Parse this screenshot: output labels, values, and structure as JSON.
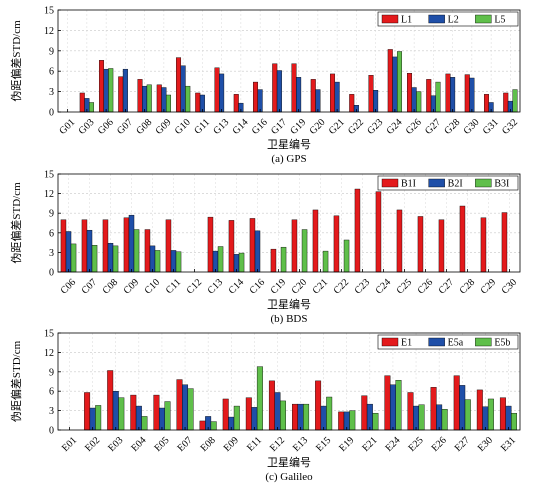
{
  "chart_data": [
    {
      "type": "bar",
      "caption": "(a) GPS",
      "xlabel": "卫星编号",
      "ylabel": "伪距偏差STD/cm",
      "ylim": [
        0,
        15
      ],
      "yticks": [
        0,
        3,
        6,
        9,
        12,
        15
      ],
      "grid": true,
      "legend_position": "top-right",
      "categories": [
        "G01",
        "G03",
        "G06",
        "G07",
        "G08",
        "G09",
        "G10",
        "G11",
        "G13",
        "G14",
        "G16",
        "G17",
        "G19",
        "G20",
        "G21",
        "G22",
        "G23",
        "G24",
        "G26",
        "G27",
        "G28",
        "G30",
        "G31",
        "G32"
      ],
      "series": [
        {
          "name": "L1",
          "color": "#e31a1c",
          "values": [
            0,
            2.8,
            7.6,
            5.2,
            4.8,
            4.0,
            8.0,
            2.8,
            6.5,
            2.6,
            4.4,
            7.1,
            7.1,
            4.8,
            5.6,
            2.6,
            5.4,
            9.2,
            5.7,
            4.8,
            5.6,
            5.5,
            2.6,
            2.8
          ]
        },
        {
          "name": "L2",
          "color": "#1f4fa8",
          "values": [
            0,
            2.0,
            6.3,
            6.3,
            3.8,
            3.6,
            6.8,
            2.5,
            5.6,
            1.3,
            3.3,
            6.1,
            5.1,
            3.3,
            4.4,
            1.0,
            3.2,
            8.1,
            3.6,
            2.4,
            5.1,
            5.0,
            1.4,
            1.6
          ]
        },
        {
          "name": "L5",
          "color": "#5fbf4a",
          "values": [
            0,
            1.4,
            6.4,
            0,
            4.0,
            2.5,
            3.8,
            0,
            0,
            0,
            0,
            0,
            0,
            0,
            0,
            0,
            0,
            8.9,
            3.0,
            4.4,
            0,
            0,
            0,
            3.3
          ]
        }
      ]
    },
    {
      "type": "bar",
      "caption": "(b) BDS",
      "xlabel": "卫星编号",
      "ylabel": "伪距偏差STD/cm",
      "ylim": [
        0,
        15
      ],
      "yticks": [
        0,
        3,
        6,
        9,
        12,
        15
      ],
      "grid": true,
      "legend_position": "top-right",
      "categories": [
        "C06",
        "C07",
        "C08",
        "C09",
        "C10",
        "C11",
        "C12",
        "C13",
        "C14",
        "C16",
        "C19",
        "C20",
        "C21",
        "C22",
        "C23",
        "C24",
        "C25",
        "C26",
        "C27",
        "C28",
        "C29",
        "C30"
      ],
      "series": [
        {
          "name": "B1I",
          "color": "#e31a1c",
          "values": [
            8.0,
            8.0,
            8.0,
            8.3,
            6.5,
            8.0,
            0,
            8.4,
            7.9,
            8.2,
            3.5,
            8.0,
            9.5,
            8.6,
            12.7,
            12.3,
            9.5,
            8.5,
            8.0,
            10.1,
            8.3,
            9.1
          ]
        },
        {
          "name": "B2I",
          "color": "#1f4fa8",
          "values": [
            6.2,
            6.4,
            4.4,
            8.7,
            4.0,
            3.3,
            0,
            3.2,
            2.7,
            6.3,
            0,
            0,
            0,
            0,
            0,
            0,
            0,
            0,
            0,
            0,
            0,
            0
          ]
        },
        {
          "name": "B3I",
          "color": "#5fbf4a",
          "values": [
            4.3,
            4.1,
            4.0,
            6.5,
            3.3,
            3.1,
            0,
            3.9,
            2.9,
            0,
            3.8,
            6.5,
            3.2,
            4.9,
            0,
            0,
            0,
            0,
            0,
            0,
            0,
            0
          ]
        }
      ]
    },
    {
      "type": "bar",
      "caption": "(c) Galileo",
      "xlabel": "卫星编号",
      "ylabel": "伪距偏差STD/cm",
      "ylim": [
        0,
        15
      ],
      "yticks": [
        0,
        3,
        6,
        9,
        12,
        15
      ],
      "grid": true,
      "legend_position": "top-right",
      "categories": [
        "E01",
        "E02",
        "E03",
        "E04",
        "E05",
        "E07",
        "E08",
        "E09",
        "E11",
        "E12",
        "E13",
        "E15",
        "E19",
        "E21",
        "E24",
        "E25",
        "E26",
        "E27",
        "E30",
        "E31"
      ],
      "series": [
        {
          "name": "E1",
          "color": "#e31a1c",
          "values": [
            0,
            5.8,
            9.2,
            5.4,
            5.4,
            7.8,
            1.4,
            4.8,
            5.0,
            7.6,
            4.0,
            7.6,
            2.8,
            5.3,
            8.4,
            5.8,
            6.6,
            8.4,
            6.2,
            5.0
          ]
        },
        {
          "name": "E5a",
          "color": "#1f4fa8",
          "values": [
            0,
            3.4,
            6.0,
            3.7,
            3.4,
            7.0,
            2.1,
            2.0,
            3.5,
            5.8,
            4.0,
            3.7,
            2.8,
            4.0,
            7.0,
            3.7,
            3.9,
            6.9,
            3.6,
            3.7
          ]
        },
        {
          "name": "E5b",
          "color": "#5fbf4a",
          "values": [
            0,
            3.8,
            5.0,
            2.1,
            4.4,
            6.4,
            1.3,
            3.7,
            9.8,
            4.5,
            4.0,
            5.1,
            3.0,
            2.6,
            7.7,
            3.9,
            3.2,
            4.7,
            4.8,
            2.6
          ]
        }
      ]
    }
  ]
}
